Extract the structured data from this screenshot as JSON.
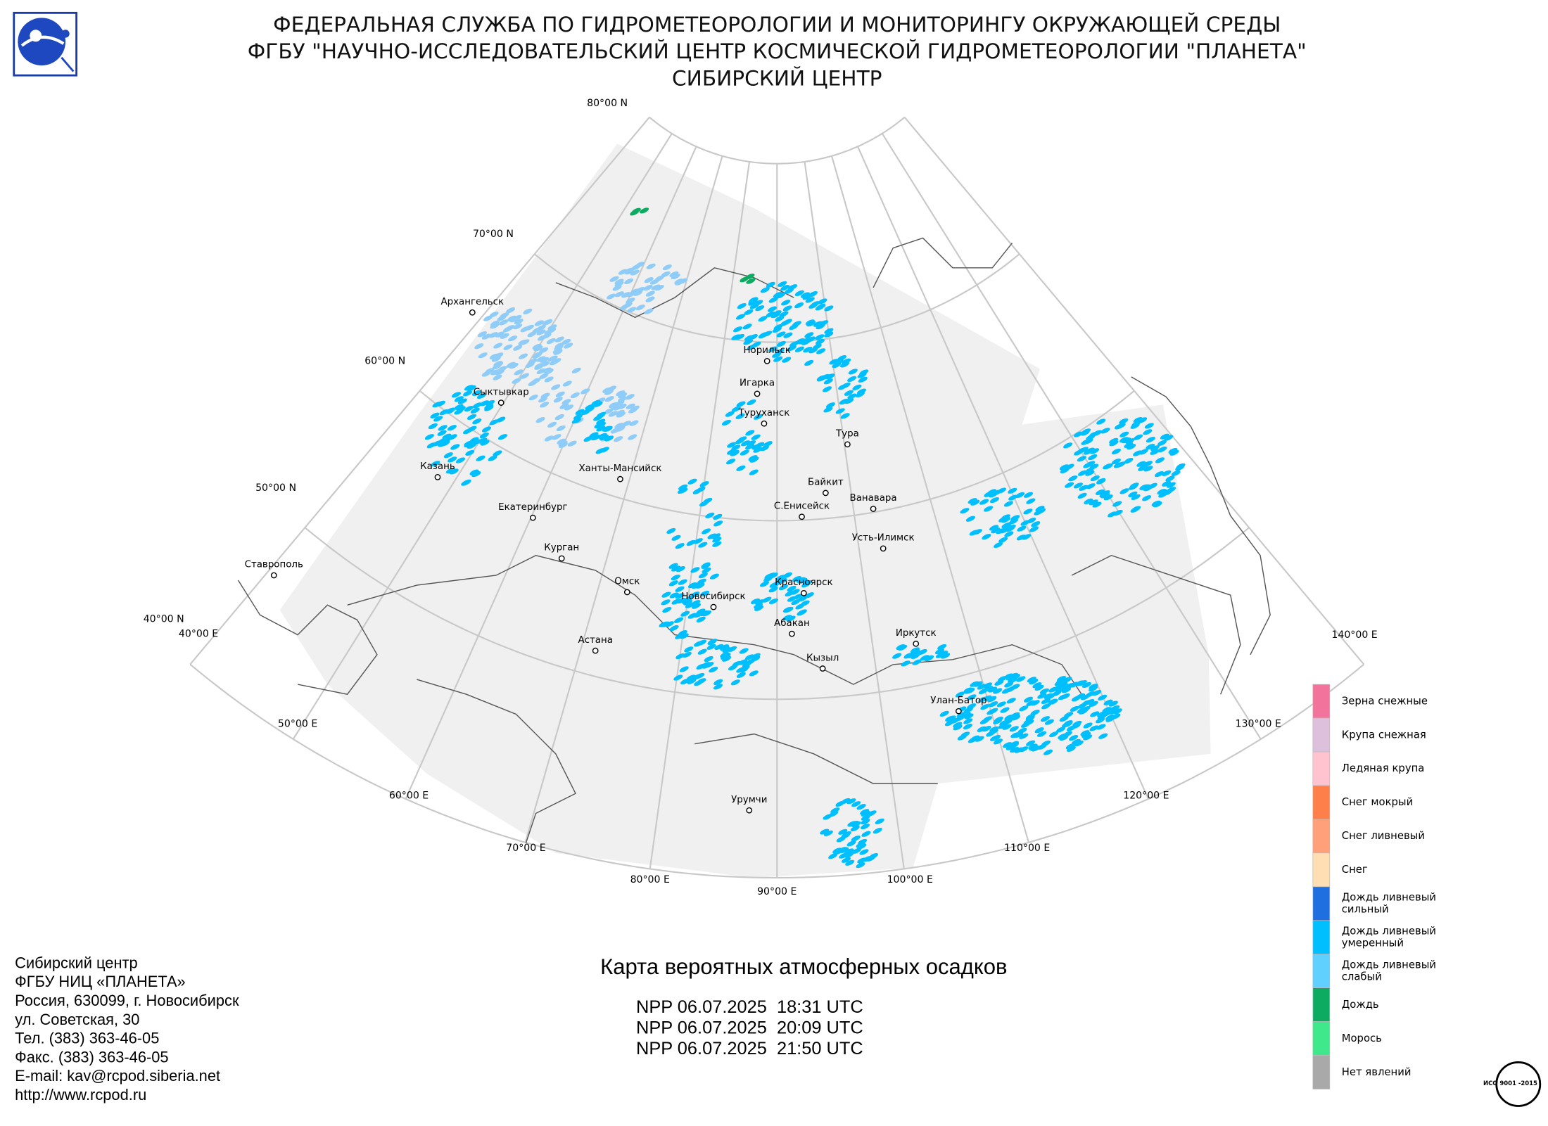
{
  "header": {
    "lines": [
      "ФЕДЕРАЛЬНАЯ СЛУЖБА ПО ГИДРОМЕТЕОРОЛОГИИ И МОНИТОРИНГУ ОКРУЖАЮЩЕЙ СРЕДЫ",
      "ФГБУ \"НАУЧНО-ИССЛЕДОВАТЕЛЬСКИЙ ЦЕНТР КОСМИЧЕСКОЙ ГИДРОМЕТЕОРОЛОГИИ \"ПЛАНЕТА\"",
      "СИБИРСКИЙ ЦЕНТР"
    ]
  },
  "map": {
    "lat_labels": [
      "80°00 N",
      "70°00 N",
      "60°00 N",
      "50°00 N",
      "40°00 N"
    ],
    "lon_labels": [
      "40°00 E",
      "50°00 E",
      "60°00 E",
      "70°00 E",
      "80°00 E",
      "90°00 E",
      "100°00 E",
      "110°00 E",
      "120°00 E",
      "130°00 E",
      "140°00 E"
    ],
    "cities": [
      "Архангельск",
      "Сыктывкар",
      "Казань",
      "Екатеринбург",
      "Ханты-Мансийск",
      "Курган",
      "Ставрополь",
      "Омск",
      "Новосибирск",
      "Астана",
      "Норильск",
      "Игарка",
      "Туруханск",
      "Тура",
      "Байкит",
      "С.Енисейск",
      "Ванавара",
      "Усть-Илимск",
      "Красноярск",
      "Абакан",
      "Кызыл",
      "Иркутск",
      "Улан-Батор",
      "Урумчи"
    ]
  },
  "legend": {
    "items": [
      {
        "label": "Зерна снежные",
        "color": "#f2739c"
      },
      {
        "label": "Крупа снежная",
        "color": "#dcc0dc"
      },
      {
        "label": "Ледяная крупа",
        "color": "#ffc2cf"
      },
      {
        "label": "Снег мокрый",
        "color": "#ff7f4a"
      },
      {
        "label": "Снег ливневый",
        "color": "#ffa07a"
      },
      {
        "label": "Снег",
        "color": "#ffdeb4"
      },
      {
        "label": "Дождь ливневый сильный",
        "color": "#1f6fe0"
      },
      {
        "label": "Дождь ливневый умеренный",
        "color": "#00bfff"
      },
      {
        "label": "Дождь ливневый слабый",
        "color": "#5fd0ff"
      },
      {
        "label": "Дождь",
        "color": "#0daa62"
      },
      {
        "label": "Морось",
        "color": "#40e88c"
      },
      {
        "label": "Нет явлений",
        "color": "#a9a9a9"
      }
    ]
  },
  "caption": {
    "title": "Карта вероятных атмосферных осадков",
    "passes": [
      "NPP 06.07.2025  18:31 UTC",
      "NPP 06.07.2025  20:09 UTC",
      "NPP 06.07.2025  21:50 UTC"
    ]
  },
  "contact": {
    "lines": [
      "Сибирский центр",
      "ФГБУ НИЦ «ПЛАНЕТА»",
      "Россия, 630099, г. Новосибирск",
      "ул. Советская, 30",
      "Тел. (383) 363-46-05",
      "Факс. (383) 363-46-05",
      "E-mail: kav@rcpod.siberia.net",
      "http://www.rcpod.ru"
    ]
  },
  "iso": {
    "label": "ИСО 9001 -2015"
  }
}
